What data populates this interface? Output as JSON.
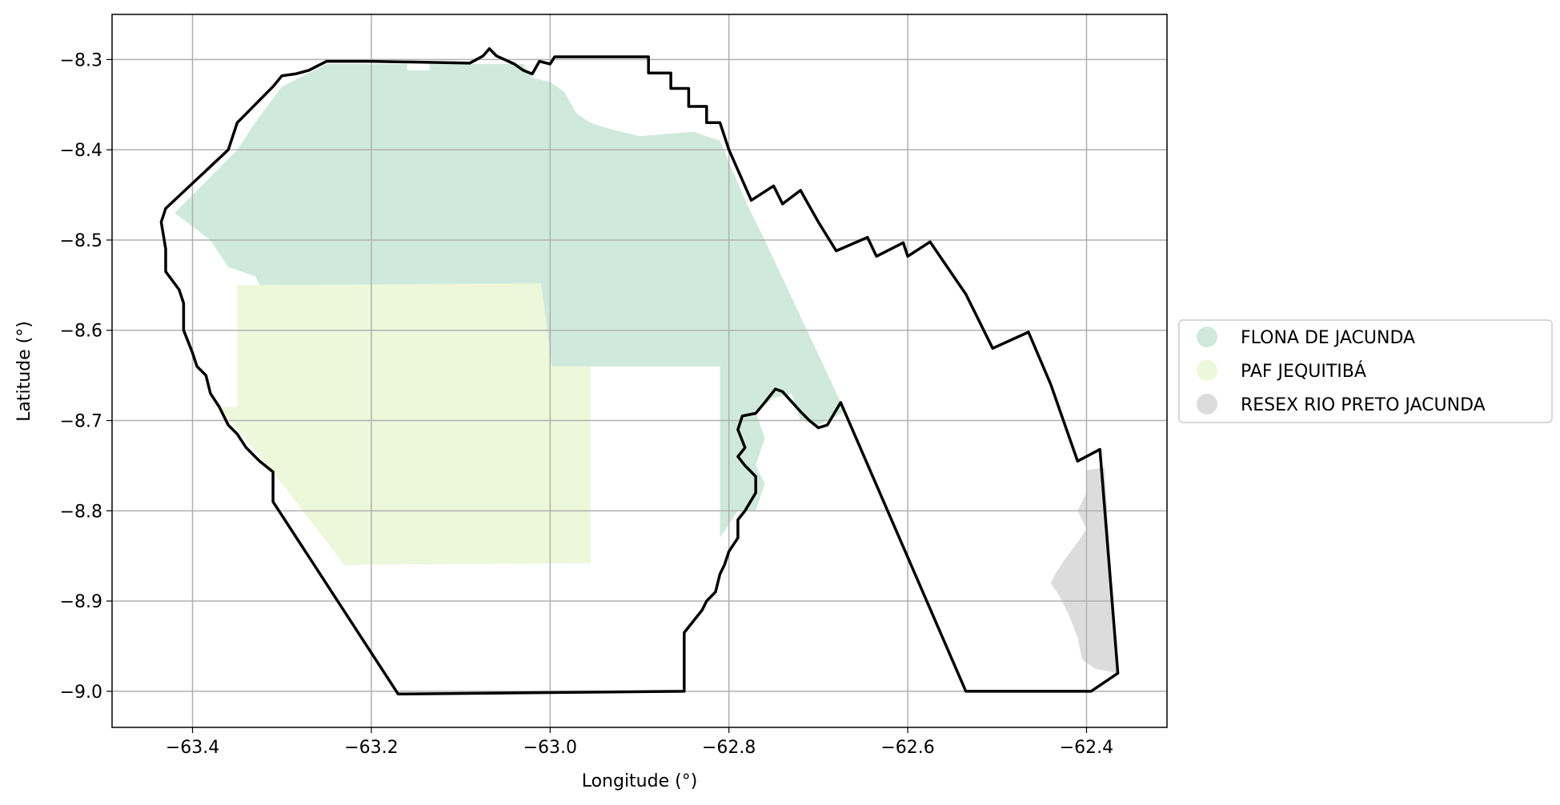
{
  "chart_data": {
    "type": "map",
    "xlabel": "Longitude (°)",
    "ylabel": "Latitude (°)",
    "xlim": [
      -63.49,
      -62.31
    ],
    "ylim": [
      -9.04,
      -8.25
    ],
    "x_ticks": [
      -63.4,
      -63.2,
      -63.0,
      -62.8,
      -62.6,
      -62.4
    ],
    "y_ticks": [
      -8.3,
      -8.4,
      -8.5,
      -8.6,
      -8.7,
      -8.8,
      -8.9,
      -9.0
    ],
    "x_tick_labels": [
      "−63.4",
      "−63.2",
      "−63.0",
      "−62.8",
      "−62.6",
      "−62.4"
    ],
    "y_tick_labels": [
      "−8.3",
      "−8.4",
      "−8.5",
      "−8.6",
      "−8.7",
      "−8.8",
      "−8.9",
      "−9.0"
    ],
    "grid": true,
    "legend_position": "right",
    "legend": [
      {
        "label": "FLONA DE JACUNDA",
        "color": "#cfeadd"
      },
      {
        "label": "PAF JEQUITIBÁ",
        "color": "#edf7da"
      },
      {
        "label": "RESEX RIO PRETO JACUNDA",
        "color": "#dcdcdc"
      }
    ],
    "areas": [
      {
        "name": "FLONA DE JACUNDA",
        "color": "#cfeadd",
        "rings": [
          [
            [
              -63.42,
              -8.47
            ],
            [
              -63.35,
              -8.4
            ],
            [
              -63.33,
              -8.37
            ],
            [
              -63.3,
              -8.33
            ],
            [
              -63.25,
              -8.305
            ],
            [
              -63.16,
              -8.305
            ],
            [
              -63.16,
              -8.312
            ],
            [
              -63.135,
              -8.312
            ],
            [
              -63.135,
              -8.305
            ],
            [
              -63.03,
              -8.305
            ],
            [
              -63.02,
              -8.32
            ],
            [
              -63.0,
              -8.325
            ],
            [
              -62.985,
              -8.335
            ],
            [
              -62.97,
              -8.36
            ],
            [
              -62.955,
              -8.37
            ],
            [
              -62.94,
              -8.375
            ],
            [
              -62.92,
              -8.38
            ],
            [
              -62.9,
              -8.385
            ],
            [
              -62.84,
              -8.38
            ],
            [
              -62.81,
              -8.39
            ],
            [
              -62.78,
              -8.46
            ],
            [
              -62.76,
              -8.5
            ],
            [
              -62.67,
              -8.69
            ],
            [
              -62.7,
              -8.705
            ],
            [
              -62.72,
              -8.7
            ],
            [
              -62.73,
              -8.67
            ],
            [
              -62.75,
              -8.675
            ],
            [
              -62.77,
              -8.69
            ],
            [
              -62.76,
              -8.72
            ],
            [
              -62.77,
              -8.75
            ],
            [
              -62.76,
              -8.77
            ],
            [
              -62.77,
              -8.8
            ],
            [
              -62.79,
              -8.8
            ],
            [
              -62.81,
              -8.83
            ],
            [
              -62.81,
              -8.64
            ],
            [
              -62.96,
              -8.64
            ],
            [
              -62.998,
              -8.64
            ],
            [
              -63.01,
              -8.55
            ],
            [
              -63.1,
              -8.55
            ],
            [
              -63.32,
              -8.56
            ],
            [
              -63.33,
              -8.54
            ],
            [
              -63.36,
              -8.53
            ],
            [
              -63.38,
              -8.5
            ]
          ]
        ]
      },
      {
        "name": "PAF JEQUITIBÁ",
        "color": "#edf7da",
        "rings": [
          [
            [
              -63.35,
              -8.55
            ],
            [
              -63.01,
              -8.548
            ],
            [
              -62.998,
              -8.64
            ],
            [
              -62.955,
              -8.64
            ],
            [
              -62.955,
              -8.858
            ],
            [
              -63.23,
              -8.86
            ],
            [
              -63.3,
              -8.77
            ],
            [
              -63.37,
              -8.685
            ],
            [
              -63.35,
              -8.685
            ]
          ]
        ]
      },
      {
        "name": "RESEX RIO PRETO JACUNDA",
        "color": "#dcdcdc",
        "rings": [
          [
            [
              -62.4,
              -8.755
            ],
            [
              -62.38,
              -8.752
            ],
            [
              -62.365,
              -8.98
            ],
            [
              -62.39,
              -8.975
            ],
            [
              -62.405,
              -8.965
            ],
            [
              -62.41,
              -8.94
            ],
            [
              -62.42,
              -8.915
            ],
            [
              -62.43,
              -8.895
            ],
            [
              -62.44,
              -8.88
            ],
            [
              -62.435,
              -8.87
            ],
            [
              -62.425,
              -8.855
            ],
            [
              -62.41,
              -8.835
            ],
            [
              -62.4,
              -8.82
            ],
            [
              -62.41,
              -8.8
            ],
            [
              -62.4,
              -8.78
            ]
          ]
        ]
      }
    ],
    "boundaries": [
      {
        "name": "municipality-boundary",
        "color": "#000000",
        "rings": [
          [
            [
              -63.43,
              -8.465
            ],
            [
              -63.36,
              -8.4
            ],
            [
              -63.35,
              -8.37
            ],
            [
              -63.33,
              -8.35
            ],
            [
              -63.31,
              -8.33
            ],
            [
              -63.3,
              -8.318
            ],
            [
              -63.285,
              -8.316
            ],
            [
              -63.27,
              -8.312
            ],
            [
              -63.25,
              -8.302
            ],
            [
              -63.2,
              -8.302
            ],
            [
              -63.09,
              -8.304
            ],
            [
              -63.075,
              -8.296
            ],
            [
              -63.068,
              -8.288
            ],
            [
              -63.06,
              -8.296
            ],
            [
              -63.04,
              -8.305
            ],
            [
              -63.03,
              -8.312
            ],
            [
              -63.02,
              -8.316
            ],
            [
              -63.012,
              -8.302
            ],
            [
              -63.0,
              -8.305
            ],
            [
              -62.995,
              -8.297
            ],
            [
              -62.89,
              -8.297
            ],
            [
              -62.89,
              -8.315
            ],
            [
              -62.865,
              -8.315
            ],
            [
              -62.865,
              -8.332
            ],
            [
              -62.845,
              -8.332
            ],
            [
              -62.845,
              -8.352
            ],
            [
              -62.825,
              -8.352
            ],
            [
              -62.825,
              -8.37
            ],
            [
              -62.81,
              -8.37
            ],
            [
              -62.8,
              -8.4
            ],
            [
              -62.775,
              -8.456
            ],
            [
              -62.75,
              -8.44
            ],
            [
              -62.74,
              -8.46
            ],
            [
              -62.72,
              -8.445
            ],
            [
              -62.7,
              -8.48
            ],
            [
              -62.68,
              -8.512
            ],
            [
              -62.645,
              -8.497
            ],
            [
              -62.635,
              -8.518
            ],
            [
              -62.605,
              -8.503
            ],
            [
              -62.6,
              -8.518
            ],
            [
              -62.575,
              -8.502
            ],
            [
              -62.535,
              -8.56
            ],
            [
              -62.505,
              -8.62
            ],
            [
              -62.465,
              -8.602
            ],
            [
              -62.44,
              -8.66
            ],
            [
              -62.41,
              -8.745
            ],
            [
              -62.385,
              -8.732
            ],
            [
              -62.365,
              -8.98
            ],
            [
              -62.395,
              -9.0
            ],
            [
              -62.535,
              -9.0
            ],
            [
              -62.675,
              -8.68
            ],
            [
              -62.69,
              -8.705
            ],
            [
              -62.7,
              -8.708
            ],
            [
              -62.71,
              -8.7
            ],
            [
              -62.72,
              -8.69
            ],
            [
              -62.74,
              -8.668
            ],
            [
              -62.748,
              -8.665
            ],
            [
              -62.76,
              -8.68
            ],
            [
              -62.77,
              -8.692
            ],
            [
              -62.785,
              -8.695
            ],
            [
              -62.79,
              -8.71
            ],
            [
              -62.782,
              -8.73
            ],
            [
              -62.79,
              -8.74
            ],
            [
              -62.782,
              -8.75
            ],
            [
              -62.77,
              -8.762
            ],
            [
              -62.77,
              -8.78
            ],
            [
              -62.782,
              -8.8
            ],
            [
              -62.79,
              -8.81
            ],
            [
              -62.79,
              -8.83
            ],
            [
              -62.8,
              -8.845
            ],
            [
              -62.805,
              -8.86
            ],
            [
              -62.81,
              -8.87
            ],
            [
              -62.815,
              -8.89
            ],
            [
              -62.825,
              -8.9
            ],
            [
              -62.83,
              -8.91
            ],
            [
              -62.85,
              -8.935
            ],
            [
              -62.85,
              -9.0
            ],
            [
              -63.17,
              -9.003
            ],
            [
              -63.31,
              -8.79
            ],
            [
              -63.31,
              -8.757
            ],
            [
              -63.325,
              -8.745
            ],
            [
              -63.34,
              -8.73
            ],
            [
              -63.35,
              -8.715
            ],
            [
              -63.36,
              -8.705
            ],
            [
              -63.37,
              -8.685
            ],
            [
              -63.38,
              -8.67
            ],
            [
              -63.385,
              -8.65
            ],
            [
              -63.395,
              -8.64
            ],
            [
              -63.4,
              -8.625
            ],
            [
              -63.41,
              -8.6
            ],
            [
              -63.41,
              -8.57
            ],
            [
              -63.415,
              -8.555
            ],
            [
              -63.43,
              -8.535
            ],
            [
              -63.43,
              -8.51
            ],
            [
              -63.435,
              -8.48
            ],
            [
              -63.43,
              -8.465
            ]
          ]
        ]
      }
    ]
  }
}
